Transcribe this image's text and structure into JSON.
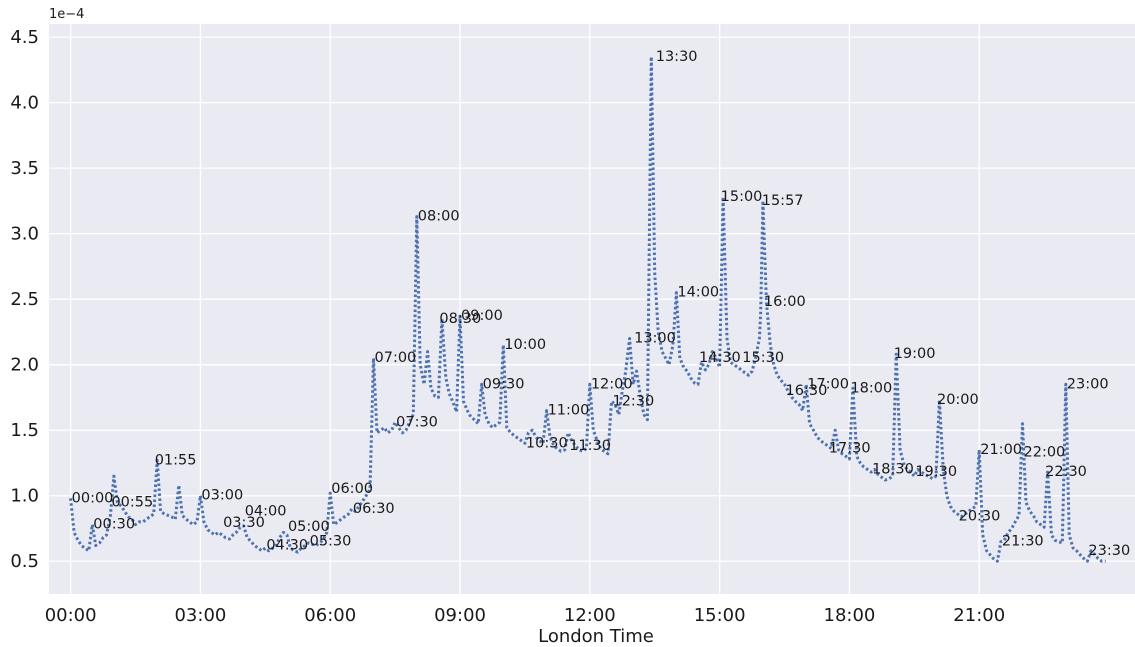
{
  "chart_data": {
    "type": "line",
    "xlabel": "London Time",
    "ylabel": "",
    "y_offset_label": "1e−4",
    "x_unit": "hour of day",
    "xlim": [
      -0.5,
      24.6
    ],
    "ylim": [
      0.25,
      4.6
    ],
    "x_ticks": [
      0,
      3,
      6,
      9,
      12,
      15,
      18,
      21
    ],
    "x_tick_labels": [
      "00:00",
      "03:00",
      "06:00",
      "09:00",
      "12:00",
      "15:00",
      "18:00",
      "21:00"
    ],
    "y_ticks": [
      0.5,
      1.0,
      1.5,
      2.0,
      2.5,
      3.0,
      3.5,
      4.0,
      4.5
    ],
    "y_tick_labels": [
      "0.5",
      "1.0",
      "1.5",
      "2.0",
      "2.5",
      "3.0",
      "3.5",
      "4.0",
      "4.5"
    ],
    "grid": true,
    "line_style": "dotted",
    "colors": {
      "line": "#4c72b0",
      "background": "#eaeaf2",
      "grid": "#ffffff"
    },
    "series": [
      {
        "x": [
          0.0,
          0.08,
          0.17,
          0.25,
          0.33,
          0.42,
          0.5,
          0.58,
          0.67,
          0.75,
          0.83,
          0.92,
          1.0,
          1.08,
          1.17,
          1.25,
          1.33,
          1.42,
          1.5,
          1.58,
          1.67,
          1.75,
          1.83,
          1.92,
          2.0,
          2.08,
          2.17,
          2.25,
          2.33,
          2.42,
          2.5,
          2.58,
          2.67,
          2.75,
          2.83,
          2.92,
          3.0,
          3.08,
          3.17,
          3.25,
          3.33,
          3.42,
          3.5,
          3.58,
          3.67,
          3.75,
          3.83,
          3.92,
          4.0,
          4.08,
          4.17,
          4.25,
          4.33,
          4.42,
          4.5,
          4.58,
          4.67,
          4.75,
          4.83,
          4.92,
          5.0,
          5.08,
          5.17,
          5.25,
          5.33,
          5.42,
          5.5,
          5.58,
          5.67,
          5.75,
          5.83,
          5.92,
          6.0,
          6.08,
          6.17,
          6.25,
          6.33,
          6.42,
          6.5,
          6.58,
          6.67,
          6.75,
          6.83,
          6.92,
          7.0,
          7.08,
          7.17,
          7.25,
          7.33,
          7.42,
          7.5,
          7.58,
          7.67,
          7.75,
          7.83,
          7.92,
          8.0,
          8.08,
          8.17,
          8.25,
          8.33,
          8.42,
          8.5,
          8.58,
          8.67,
          8.75,
          8.83,
          8.92,
          9.0,
          9.08,
          9.17,
          9.25,
          9.33,
          9.42,
          9.5,
          9.58,
          9.67,
          9.75,
          9.83,
          9.92,
          10.0,
          10.08,
          10.17,
          10.25,
          10.33,
          10.42,
          10.5,
          10.58,
          10.67,
          10.75,
          10.83,
          10.92,
          11.0,
          11.08,
          11.17,
          11.25,
          11.33,
          11.42,
          11.5,
          11.58,
          11.67,
          11.75,
          11.83,
          11.92,
          12.0,
          12.08,
          12.17,
          12.25,
          12.33,
          12.42,
          12.5,
          12.58,
          12.67,
          12.75,
          12.83,
          12.92,
          13.0,
          13.08,
          13.17,
          13.25,
          13.33,
          13.42,
          13.5,
          13.58,
          13.67,
          13.75,
          13.83,
          13.92,
          14.0,
          14.08,
          14.17,
          14.25,
          14.33,
          14.42,
          14.5,
          14.58,
          14.67,
          14.75,
          14.83,
          14.92,
          15.0,
          15.08,
          15.17,
          15.25,
          15.33,
          15.42,
          15.5,
          15.58,
          15.67,
          15.75,
          15.83,
          15.92,
          15.95,
          16.0,
          16.08,
          16.17,
          16.25,
          16.33,
          16.42,
          16.5,
          16.58,
          16.67,
          16.75,
          16.83,
          16.92,
          17.0,
          17.08,
          17.17,
          17.25,
          17.33,
          17.42,
          17.5,
          17.58,
          17.67,
          17.75,
          17.83,
          17.92,
          18.0,
          18.08,
          18.17,
          18.25,
          18.33,
          18.42,
          18.5,
          18.58,
          18.67,
          18.75,
          18.83,
          18.92,
          19.0,
          19.08,
          19.17,
          19.25,
          19.33,
          19.42,
          19.5,
          19.58,
          19.67,
          19.75,
          19.83,
          19.92,
          20.0,
          20.08,
          20.17,
          20.25,
          20.33,
          20.42,
          20.5,
          20.58,
          20.67,
          20.75,
          20.83,
          20.92,
          21.0,
          21.08,
          21.17,
          21.25,
          21.33,
          21.42,
          21.5,
          21.58,
          21.67,
          21.75,
          21.83,
          21.92,
          22.0,
          22.08,
          22.17,
          22.25,
          22.33,
          22.42,
          22.5,
          22.58,
          22.67,
          22.75,
          22.83,
          22.92,
          23.0,
          23.08,
          23.17,
          23.25,
          23.33,
          23.42,
          23.5,
          23.58,
          23.67,
          23.75,
          23.83,
          23.92
        ],
        "y": [
          0.98,
          0.72,
          0.66,
          0.62,
          0.6,
          0.58,
          0.78,
          0.62,
          0.64,
          0.68,
          0.7,
          0.85,
          1.15,
          0.95,
          0.92,
          0.88,
          0.84,
          0.82,
          0.78,
          0.8,
          0.8,
          0.82,
          0.84,
          0.86,
          1.27,
          0.88,
          0.86,
          0.85,
          0.84,
          0.82,
          1.08,
          0.85,
          0.82,
          0.8,
          0.78,
          0.8,
          1.0,
          0.8,
          0.74,
          0.72,
          0.7,
          0.72,
          0.7,
          0.68,
          0.67,
          0.7,
          0.72,
          0.76,
          0.77,
          0.68,
          0.65,
          0.62,
          0.6,
          0.58,
          0.6,
          0.58,
          0.6,
          0.62,
          0.68,
          0.72,
          0.7,
          0.6,
          0.58,
          0.57,
          0.6,
          0.62,
          0.64,
          0.63,
          0.62,
          0.64,
          0.66,
          0.72,
          1.02,
          0.78,
          0.8,
          0.82,
          0.84,
          0.86,
          0.9,
          0.88,
          0.92,
          0.96,
          1.0,
          1.05,
          2.05,
          1.48,
          1.5,
          1.52,
          1.48,
          1.5,
          1.56,
          1.52,
          1.48,
          1.5,
          1.56,
          1.62,
          3.13,
          2.0,
          1.85,
          2.1,
          1.82,
          1.76,
          1.75,
          2.35,
          1.9,
          1.78,
          1.72,
          1.64,
          2.37,
          1.72,
          1.65,
          1.6,
          1.58,
          1.55,
          1.85,
          1.62,
          1.55,
          1.52,
          1.54,
          1.56,
          2.15,
          1.52,
          1.48,
          1.46,
          1.44,
          1.42,
          1.4,
          1.48,
          1.5,
          1.45,
          1.42,
          1.4,
          1.65,
          1.45,
          1.38,
          1.36,
          1.34,
          1.35,
          1.48,
          1.42,
          1.38,
          1.35,
          1.34,
          1.36,
          1.85,
          1.5,
          1.42,
          1.36,
          1.34,
          1.32,
          1.72,
          1.7,
          1.62,
          1.8,
          1.95,
          2.2,
          1.85,
          1.95,
          1.75,
          1.62,
          1.58,
          4.35,
          2.7,
          2.25,
          2.1,
          2.05,
          2.0,
          2.15,
          2.55,
          2.05,
          1.98,
          1.95,
          1.9,
          1.86,
          1.85,
          2.02,
          1.96,
          2.0,
          2.1,
          2.05,
          1.98,
          3.28,
          2.2,
          2.02,
          2.0,
          1.98,
          1.96,
          1.94,
          1.92,
          1.95,
          2.05,
          2.2,
          2.4,
          3.25,
          2.48,
          2.15,
          2.0,
          1.92,
          1.88,
          1.85,
          1.8,
          1.75,
          1.72,
          1.7,
          1.65,
          1.85,
          1.55,
          1.5,
          1.45,
          1.42,
          1.4,
          1.38,
          1.36,
          1.5,
          1.35,
          1.32,
          1.3,
          1.28,
          1.82,
          1.3,
          1.25,
          1.22,
          1.2,
          1.18,
          1.2,
          1.16,
          1.14,
          1.12,
          1.13,
          1.15,
          2.08,
          1.35,
          1.25,
          1.2,
          1.18,
          1.15,
          1.2,
          1.18,
          1.16,
          1.15,
          1.13,
          1.15,
          1.73,
          1.2,
          1.0,
          0.92,
          0.88,
          0.86,
          0.84,
          0.86,
          0.88,
          0.9,
          0.92,
          1.35,
          0.7,
          0.58,
          0.55,
          0.52,
          0.5,
          0.65,
          0.66,
          0.72,
          0.75,
          0.8,
          0.85,
          1.55,
          0.95,
          0.88,
          0.85,
          0.8,
          0.78,
          0.76,
          1.18,
          0.7,
          0.66,
          0.65,
          0.64,
          1.85,
          0.7,
          0.6,
          0.58,
          0.55,
          0.52,
          0.5,
          0.58,
          0.55,
          0.52,
          0.5,
          0.5
        ]
      }
    ],
    "annotations": [
      {
        "label": "00:00",
        "x": 0.0,
        "y": 0.98
      },
      {
        "label": "00:30",
        "x": 0.5,
        "y": 0.78
      },
      {
        "label": "00:55",
        "x": 0.92,
        "y": 0.95
      },
      {
        "label": "01:55",
        "x": 1.92,
        "y": 1.27
      },
      {
        "label": "03:00",
        "x": 3.0,
        "y": 1.0
      },
      {
        "label": "03:30",
        "x": 3.5,
        "y": 0.79
      },
      {
        "label": "04:00",
        "x": 4.0,
        "y": 0.88
      },
      {
        "label": "04:30",
        "x": 4.5,
        "y": 0.62
      },
      {
        "label": "05:00",
        "x": 5.0,
        "y": 0.76
      },
      {
        "label": "05:30",
        "x": 5.5,
        "y": 0.65
      },
      {
        "label": "06:00",
        "x": 6.0,
        "y": 1.05
      },
      {
        "label": "06:30",
        "x": 6.5,
        "y": 0.9
      },
      {
        "label": "07:00",
        "x": 7.0,
        "y": 2.05
      },
      {
        "label": "07:30",
        "x": 7.5,
        "y": 1.56
      },
      {
        "label": "08:00",
        "x": 8.0,
        "y": 3.13
      },
      {
        "label": "08:30",
        "x": 8.5,
        "y": 2.35
      },
      {
        "label": "09:00",
        "x": 9.0,
        "y": 2.37
      },
      {
        "label": "09:30",
        "x": 9.5,
        "y": 1.85
      },
      {
        "label": "10:00",
        "x": 10.0,
        "y": 2.15
      },
      {
        "label": "10:30",
        "x": 10.5,
        "y": 1.4
      },
      {
        "label": "11:00",
        "x": 11.0,
        "y": 1.65
      },
      {
        "label": "11:30",
        "x": 11.5,
        "y": 1.38
      },
      {
        "label": "12:00",
        "x": 12.0,
        "y": 1.85
      },
      {
        "label": "12:30",
        "x": 12.5,
        "y": 1.72
      },
      {
        "label": "13:00",
        "x": 13.0,
        "y": 2.2
      },
      {
        "label": "13:30",
        "x": 13.5,
        "y": 4.35
      },
      {
        "label": "14:00",
        "x": 14.0,
        "y": 2.55
      },
      {
        "label": "14:30",
        "x": 14.5,
        "y": 2.05
      },
      {
        "label": "15:00",
        "x": 15.0,
        "y": 3.28
      },
      {
        "label": "15:30",
        "x": 15.5,
        "y": 2.05
      },
      {
        "label": "15:57",
        "x": 15.95,
        "y": 3.25
      },
      {
        "label": "16:00",
        "x": 16.0,
        "y": 2.48
      },
      {
        "label": "16:30",
        "x": 16.5,
        "y": 1.8
      },
      {
        "label": "17:00",
        "x": 17.0,
        "y": 1.85
      },
      {
        "label": "17:30",
        "x": 17.5,
        "y": 1.36
      },
      {
        "label": "18:00",
        "x": 18.0,
        "y": 1.82
      },
      {
        "label": "18:30",
        "x": 18.5,
        "y": 1.2
      },
      {
        "label": "19:00",
        "x": 19.0,
        "y": 2.08
      },
      {
        "label": "19:30",
        "x": 19.5,
        "y": 1.18
      },
      {
        "label": "20:00",
        "x": 20.0,
        "y": 1.73
      },
      {
        "label": "20:30",
        "x": 20.5,
        "y": 0.84
      },
      {
        "label": "21:00",
        "x": 21.0,
        "y": 1.35
      },
      {
        "label": "21:30",
        "x": 21.5,
        "y": 0.65
      },
      {
        "label": "22:00",
        "x": 22.0,
        "y": 1.33
      },
      {
        "label": "22:30",
        "x": 22.5,
        "y": 1.18
      },
      {
        "label": "23:00",
        "x": 23.0,
        "y": 1.85
      },
      {
        "label": "23:30",
        "x": 23.5,
        "y": 0.58
      }
    ]
  }
}
